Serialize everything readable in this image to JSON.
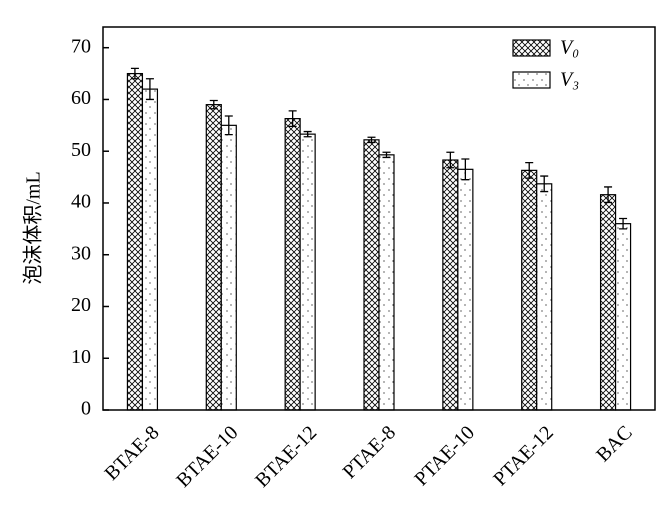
{
  "chart_data": {
    "type": "bar",
    "y_label": "泡沫体积/mL",
    "categories": [
      "BTAE-8",
      "BTAE-10",
      "BTAE-12",
      "PTAE-8",
      "PTAE-10",
      "PTAE-12",
      "BAC"
    ],
    "series": [
      {
        "name": "V₀",
        "color": "#000000",
        "pattern": "crosshatch",
        "values": [
          65,
          59,
          56.3,
          52.2,
          48.3,
          46.3,
          41.6
        ],
        "errors": [
          1,
          0.8,
          1.5,
          0.5,
          1.5,
          1.5,
          1.5
        ]
      },
      {
        "name": "V₃",
        "color": "#000000",
        "pattern": "dots",
        "values": [
          62,
          55,
          53.3,
          49.3,
          46.5,
          43.7,
          36
        ],
        "errors": [
          2,
          1.8,
          0.5,
          0.5,
          2,
          1.5,
          1
        ]
      }
    ],
    "ylim": [
      0,
      74
    ],
    "yticks": [
      0,
      10,
      20,
      30,
      40,
      50,
      60,
      70
    ],
    "legend": "upper right"
  }
}
